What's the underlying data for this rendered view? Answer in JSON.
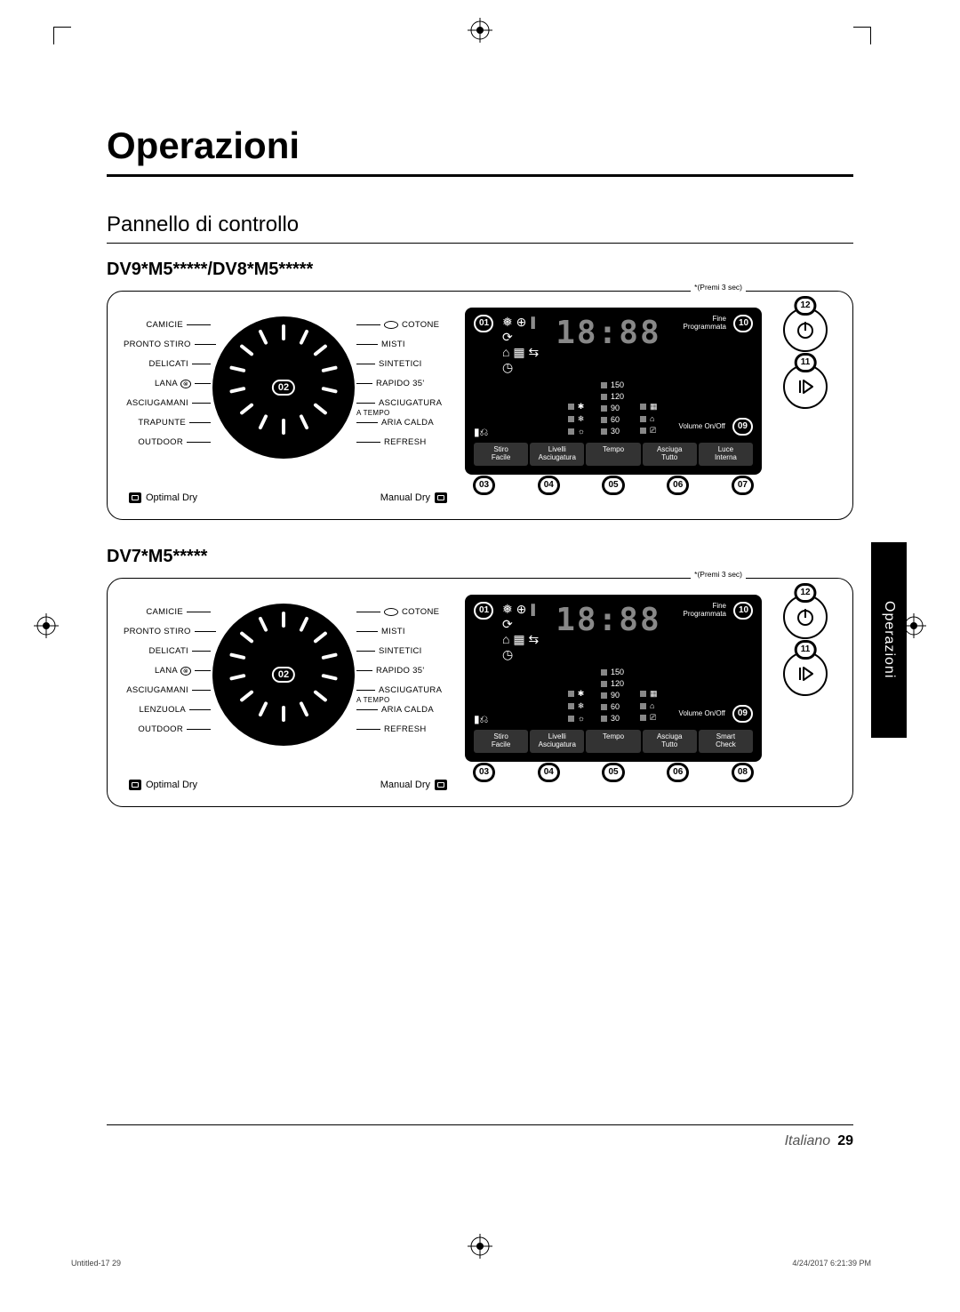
{
  "title": "Operazioni",
  "subtitle": "Pannello di controllo",
  "side_tab": "Operazioni",
  "premi": "*(Premi 3 sec)",
  "dial_number": "02",
  "optimal": "Optimal Dry",
  "manual": "Manual Dry",
  "seg_display": "18:88",
  "fine_label": "Fine\nProgrammata",
  "volume_label": "Volume\nOn/Off",
  "temps": [
    "150",
    "120",
    "90",
    "60",
    "30"
  ],
  "panels": [
    {
      "model": "DV9*M5*****/DV8*M5*****",
      "left": [
        "CAMICIE",
        "PRONTO STIRO",
        "DELICATI",
        "LANA",
        "ASCIUGAMANI",
        "TRAPUNTE",
        "OUTDOOR"
      ],
      "right": [
        "COTONE",
        "MISTI",
        "SINTETICI",
        "RAPIDO 35'",
        "ASCIUGATURA A TEMPO",
        "ARIA CALDA",
        "REFRESH"
      ],
      "buttons": [
        "Stiro Facile",
        "Livelli Asciugatura",
        "Tempo",
        "Asciuga Tutto",
        "Luce Interna"
      ],
      "bottom_nums": [
        "03",
        "04",
        "05",
        "06",
        "07"
      ],
      "side": [
        "12",
        "11"
      ],
      "top_badges": [
        "01",
        "10",
        "09"
      ]
    },
    {
      "model": "DV7*M5*****",
      "left": [
        "CAMICIE",
        "PRONTO STIRO",
        "DELICATI",
        "LANA",
        "ASCIUGAMANI",
        "LENZUOLA",
        "OUTDOOR"
      ],
      "right": [
        "COTONE",
        "MISTI",
        "SINTETICI",
        "RAPIDO 35'",
        "ASCIUGATURA A TEMPO",
        "ARIA CALDA",
        "REFRESH"
      ],
      "buttons": [
        "Stiro Facile",
        "Livelli Asciugatura",
        "Tempo",
        "Asciuga Tutto",
        "Smart Check"
      ],
      "bottom_nums": [
        "03",
        "04",
        "05",
        "06",
        "08"
      ],
      "side": [
        "12",
        "11"
      ],
      "top_badges": [
        "01",
        "10",
        "09"
      ]
    }
  ],
  "footer": {
    "lang": "Italiano",
    "page": "29"
  },
  "meta": {
    "left": "Untitled-17   29",
    "right": "4/24/2017   6:21:39 PM"
  }
}
